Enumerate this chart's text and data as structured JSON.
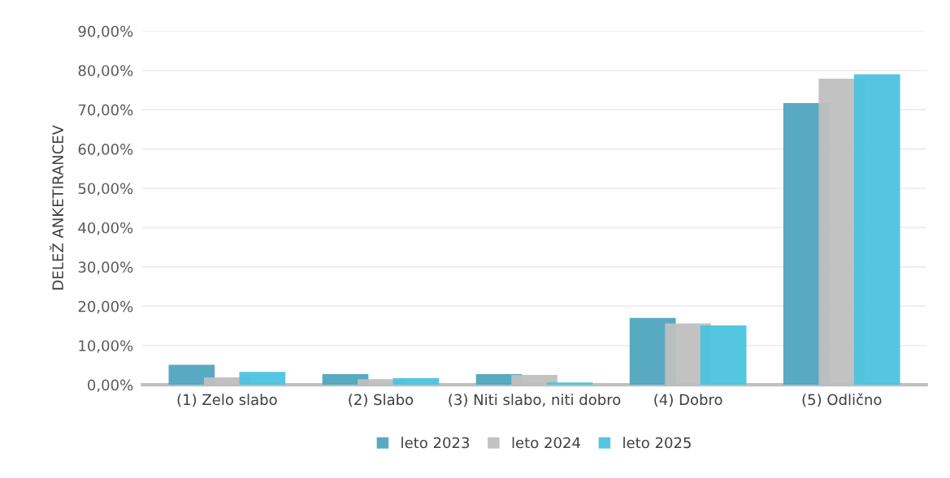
{
  "chart_data": {
    "type": "bar",
    "ylabel": "DELEŽ ANKETIRANCEV",
    "categories": [
      "(1) Zelo slabo",
      "(2) Slabo",
      "(3) Niti slabo, niti dobro",
      "(4) Dobro",
      "(5) Odlično"
    ],
    "series": [
      {
        "name": "leto 2023",
        "color": "#4ea5be",
        "values": [
          5.1,
          2.7,
          2.7,
          17.0,
          71.7
        ]
      },
      {
        "name": "leto 2024",
        "color": "#bfbfbf",
        "values": [
          1.9,
          1.4,
          2.5,
          15.6,
          77.9
        ]
      },
      {
        "name": "leto 2025",
        "color": "#4cc3df",
        "values": [
          3.3,
          1.7,
          0.6,
          15.1,
          79.0
        ]
      }
    ],
    "ylim": [
      0,
      90
    ],
    "yticks": [
      {
        "value": 0,
        "label": "0,00%"
      },
      {
        "value": 10,
        "label": "10,00%"
      },
      {
        "value": 20,
        "label": "20,00%"
      },
      {
        "value": 30,
        "label": "30,00%"
      },
      {
        "value": 40,
        "label": "40,00%"
      },
      {
        "value": 50,
        "label": "50,00%"
      },
      {
        "value": 60,
        "label": "60,00%"
      },
      {
        "value": 70,
        "label": "70,00%"
      },
      {
        "value": 80,
        "label": "80,00%"
      },
      {
        "value": 90,
        "label": "90,00%"
      }
    ],
    "grid": "y",
    "legend": "bottom"
  }
}
